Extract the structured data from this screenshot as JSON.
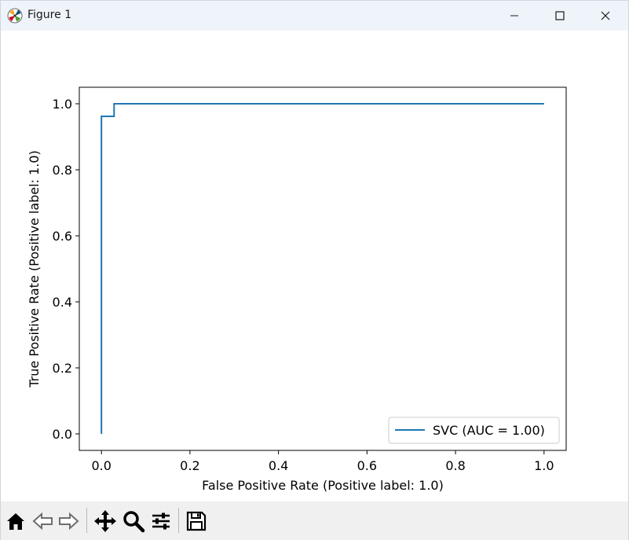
{
  "window": {
    "title": "Figure 1"
  },
  "icons": {
    "app": "matplotlib-logo-icon",
    "minimize": "minimize-icon",
    "maximize": "maximize-icon",
    "close": "close-icon",
    "home": "home-icon",
    "back": "back-arrow-icon",
    "forward": "forward-arrow-icon",
    "pan": "move-icon",
    "zoom": "magnifier-icon",
    "configure": "sliders-icon",
    "save": "floppy-disk-icon"
  },
  "colors": {
    "line": "#1f77b4",
    "toolbar_bg": "#f0f0f0",
    "titlebar_bg": "#eef4fa"
  },
  "chart_data": {
    "type": "line",
    "xlabel": "False Positive Rate (Positive label: 1.0)",
    "ylabel": "True Positive Rate (Positive label: 1.0)",
    "xlim": [
      -0.05,
      1.05
    ],
    "ylim": [
      -0.05,
      1.05
    ],
    "xticks": [
      0.0,
      0.2,
      0.4,
      0.6,
      0.8,
      1.0
    ],
    "xtick_labels": [
      "0.0",
      "0.2",
      "0.4",
      "0.6",
      "0.8",
      "1.0"
    ],
    "yticks": [
      0.0,
      0.2,
      0.4,
      0.6,
      0.8,
      1.0
    ],
    "ytick_labels": [
      "0.0",
      "0.2",
      "0.4",
      "0.6",
      "0.8",
      "1.0"
    ],
    "grid": false,
    "legend_position": "lower-right",
    "series": [
      {
        "name": "SVC (AUC = 1.00)",
        "x": [
          0.0,
          0.0,
          0.0286,
          0.0286,
          1.0
        ],
        "y": [
          0.0,
          0.962,
          0.962,
          1.0,
          1.0
        ]
      }
    ]
  }
}
